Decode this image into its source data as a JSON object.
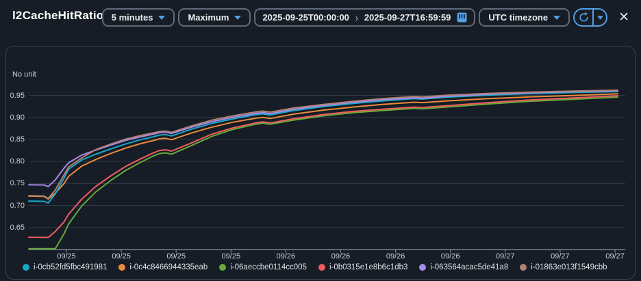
{
  "header": {
    "title": "l2CacheHitRatio",
    "period_label": "5 minutes",
    "statistic_label": "Maximum",
    "date_start": "2025-09-25T00:00:00",
    "date_end": "2025-09-27T16:59:59",
    "timezone_label": "UTC timezone",
    "close_label": "✕"
  },
  "colors": {
    "accent_blue": "#539fe5",
    "grid": "#313a46",
    "axis": "#8b97a5"
  },
  "chart_data": {
    "type": "line",
    "title": "l2CacheHitRatio",
    "unit_label": "No unit",
    "grid": true,
    "legend_position": "bottom",
    "ylim": [
      0.6,
      0.97
    ],
    "yticks": [
      0.65,
      0.7,
      0.75,
      0.8,
      0.85,
      0.9,
      0.95
    ],
    "xticks": [
      "09/25",
      "09/25",
      "09/25",
      "09/25",
      "09/26",
      "09/26",
      "09/26",
      "09/26",
      "09/27",
      "09/27",
      "09/27"
    ],
    "x_is_time_fraction": true,
    "series": [
      {
        "name": "i-0cb52fd5fbc491981",
        "color": "#1ba7c7",
        "points": [
          [
            0,
            0.71
          ],
          [
            0.026,
            0.7095
          ],
          [
            0.033,
            0.7055
          ],
          [
            0.045,
            0.726
          ],
          [
            0.06,
            0.762
          ],
          [
            0.0675,
            0.7825
          ],
          [
            0.09,
            0.8035
          ],
          [
            0.114,
            0.8165
          ],
          [
            0.14,
            0.829
          ],
          [
            0.165,
            0.84
          ],
          [
            0.19,
            0.8495
          ],
          [
            0.21,
            0.8555
          ],
          [
            0.2225,
            0.86
          ],
          [
            0.2325,
            0.861
          ],
          [
            0.2425,
            0.858
          ],
          [
            0.277,
            0.8735
          ],
          [
            0.31,
            0.886
          ],
          [
            0.346,
            0.8965
          ],
          [
            0.385,
            0.906
          ],
          [
            0.397,
            0.908
          ],
          [
            0.41,
            0.9055
          ],
          [
            0.45,
            0.9155
          ],
          [
            0.5,
            0.9245
          ],
          [
            0.55,
            0.9315
          ],
          [
            0.6,
            0.9375
          ],
          [
            0.655,
            0.9425
          ],
          [
            0.668,
            0.9415
          ],
          [
            0.71,
            0.946
          ],
          [
            0.78,
            0.9505
          ],
          [
            0.85,
            0.954
          ],
          [
            0.93,
            0.9565
          ],
          [
            1.0,
            0.9585
          ]
        ]
      },
      {
        "name": "i-0c4c8466944335eab",
        "color": "#e98a3c",
        "points": [
          [
            0,
            0.7215
          ],
          [
            0.026,
            0.7205
          ],
          [
            0.033,
            0.7145
          ],
          [
            0.045,
            0.728
          ],
          [
            0.06,
            0.75
          ],
          [
            0.0675,
            0.766
          ],
          [
            0.09,
            0.7895
          ],
          [
            0.114,
            0.8045
          ],
          [
            0.14,
            0.8185
          ],
          [
            0.165,
            0.8305
          ],
          [
            0.19,
            0.8405
          ],
          [
            0.21,
            0.847
          ],
          [
            0.2225,
            0.8515
          ],
          [
            0.2325,
            0.8525
          ],
          [
            0.2425,
            0.8495
          ],
          [
            0.277,
            0.865
          ],
          [
            0.31,
            0.8775
          ],
          [
            0.346,
            0.889
          ],
          [
            0.385,
            0.898
          ],
          [
            0.397,
            0.9
          ],
          [
            0.41,
            0.8975
          ],
          [
            0.45,
            0.9075
          ],
          [
            0.5,
            0.9165
          ],
          [
            0.55,
            0.9235
          ],
          [
            0.6,
            0.9295
          ],
          [
            0.655,
            0.9345
          ],
          [
            0.668,
            0.9335
          ],
          [
            0.71,
            0.9375
          ],
          [
            0.78,
            0.9425
          ],
          [
            0.85,
            0.9465
          ],
          [
            0.93,
            0.95
          ],
          [
            1.0,
            0.9535
          ]
        ]
      },
      {
        "name": "i-06aeccbe0114cc005",
        "color": "#69a93a",
        "points": [
          [
            0,
            0.602
          ],
          [
            0.026,
            0.602
          ],
          [
            0.033,
            0.602
          ],
          [
            0.045,
            0.602
          ],
          [
            0.06,
            0.636
          ],
          [
            0.0675,
            0.658
          ],
          [
            0.09,
            0.699
          ],
          [
            0.114,
            0.731
          ],
          [
            0.14,
            0.7575
          ],
          [
            0.165,
            0.78
          ],
          [
            0.19,
            0.798
          ],
          [
            0.21,
            0.8115
          ],
          [
            0.2225,
            0.818
          ],
          [
            0.2325,
            0.8195
          ],
          [
            0.2425,
            0.8165
          ],
          [
            0.277,
            0.8365
          ],
          [
            0.31,
            0.8565
          ],
          [
            0.346,
            0.8725
          ],
          [
            0.385,
            0.8845
          ],
          [
            0.397,
            0.887
          ],
          [
            0.41,
            0.8845
          ],
          [
            0.45,
            0.894
          ],
          [
            0.5,
            0.9035
          ],
          [
            0.55,
            0.9105
          ],
          [
            0.6,
            0.9155
          ],
          [
            0.655,
            0.9205
          ],
          [
            0.668,
            0.9195
          ],
          [
            0.71,
            0.9235
          ],
          [
            0.78,
            0.9305
          ],
          [
            0.85,
            0.9365
          ],
          [
            0.93,
            0.9415
          ],
          [
            1.0,
            0.946
          ]
        ]
      },
      {
        "name": "i-0b0315e1e8b6c1db3",
        "color": "#ef5d60",
        "points": [
          [
            0,
            0.628
          ],
          [
            0.026,
            0.6275
          ],
          [
            0.033,
            0.6275
          ],
          [
            0.045,
            0.641
          ],
          [
            0.06,
            0.663
          ],
          [
            0.0675,
            0.68
          ],
          [
            0.09,
            0.7145
          ],
          [
            0.114,
            0.7435
          ],
          [
            0.14,
            0.768
          ],
          [
            0.165,
            0.789
          ],
          [
            0.19,
            0.806
          ],
          [
            0.21,
            0.8185
          ],
          [
            0.2225,
            0.825
          ],
          [
            0.2325,
            0.8265
          ],
          [
            0.2425,
            0.8235
          ],
          [
            0.277,
            0.8425
          ],
          [
            0.31,
            0.8615
          ],
          [
            0.346,
            0.876
          ],
          [
            0.385,
            0.8875
          ],
          [
            0.397,
            0.89
          ],
          [
            0.41,
            0.8875
          ],
          [
            0.45,
            0.897
          ],
          [
            0.5,
            0.9065
          ],
          [
            0.55,
            0.9135
          ],
          [
            0.6,
            0.9185
          ],
          [
            0.655,
            0.9235
          ],
          [
            0.668,
            0.9225
          ],
          [
            0.71,
            0.9265
          ],
          [
            0.78,
            0.9335
          ],
          [
            0.85,
            0.9395
          ],
          [
            0.93,
            0.9445
          ],
          [
            1.0,
            0.949
          ]
        ]
      },
      {
        "name": "i-063564acac5de41a8",
        "color": "#a98bea",
        "points": [
          [
            0,
            0.747
          ],
          [
            0.026,
            0.7465
          ],
          [
            0.033,
            0.743
          ],
          [
            0.045,
            0.758
          ],
          [
            0.06,
            0.785
          ],
          [
            0.0675,
            0.797
          ],
          [
            0.09,
            0.8145
          ],
          [
            0.114,
            0.826
          ],
          [
            0.14,
            0.8375
          ],
          [
            0.165,
            0.848
          ],
          [
            0.19,
            0.856
          ],
          [
            0.21,
            0.8615
          ],
          [
            0.2225,
            0.8655
          ],
          [
            0.2325,
            0.8665
          ],
          [
            0.2425,
            0.8635
          ],
          [
            0.277,
            0.878
          ],
          [
            0.31,
            0.89
          ],
          [
            0.346,
            0.9
          ],
          [
            0.385,
            0.909
          ],
          [
            0.397,
            0.911
          ],
          [
            0.41,
            0.9085
          ],
          [
            0.45,
            0.9185
          ],
          [
            0.5,
            0.927
          ],
          [
            0.55,
            0.934
          ],
          [
            0.6,
            0.94
          ],
          [
            0.655,
            0.9445
          ],
          [
            0.668,
            0.9435
          ],
          [
            0.71,
            0.948
          ],
          [
            0.78,
            0.9525
          ],
          [
            0.85,
            0.956
          ],
          [
            0.93,
            0.9585
          ],
          [
            1.0,
            0.9605
          ]
        ]
      },
      {
        "name": "i-01863e013f1549cbb",
        "color": "#b08173",
        "points": [
          [
            0,
            0.7225
          ],
          [
            0.026,
            0.7215
          ],
          [
            0.033,
            0.716
          ],
          [
            0.045,
            0.735
          ],
          [
            0.06,
            0.77
          ],
          [
            0.0675,
            0.7875
          ],
          [
            0.09,
            0.808
          ],
          [
            0.114,
            0.827
          ],
          [
            0.14,
            0.84
          ],
          [
            0.165,
            0.851
          ],
          [
            0.19,
            0.859
          ],
          [
            0.21,
            0.8645
          ],
          [
            0.2225,
            0.868
          ],
          [
            0.2325,
            0.869
          ],
          [
            0.2425,
            0.866
          ],
          [
            0.277,
            0.881
          ],
          [
            0.31,
            0.8935
          ],
          [
            0.346,
            0.9035
          ],
          [
            0.385,
            0.9125
          ],
          [
            0.397,
            0.9145
          ],
          [
            0.41,
            0.912
          ],
          [
            0.45,
            0.9215
          ],
          [
            0.5,
            0.9295
          ],
          [
            0.55,
            0.9365
          ],
          [
            0.6,
            0.9425
          ],
          [
            0.655,
            0.9475
          ],
          [
            0.668,
            0.9465
          ],
          [
            0.71,
            0.9505
          ],
          [
            0.78,
            0.9545
          ],
          [
            0.85,
            0.9575
          ],
          [
            0.93,
            0.96
          ],
          [
            1.0,
            0.962
          ]
        ]
      }
    ]
  }
}
